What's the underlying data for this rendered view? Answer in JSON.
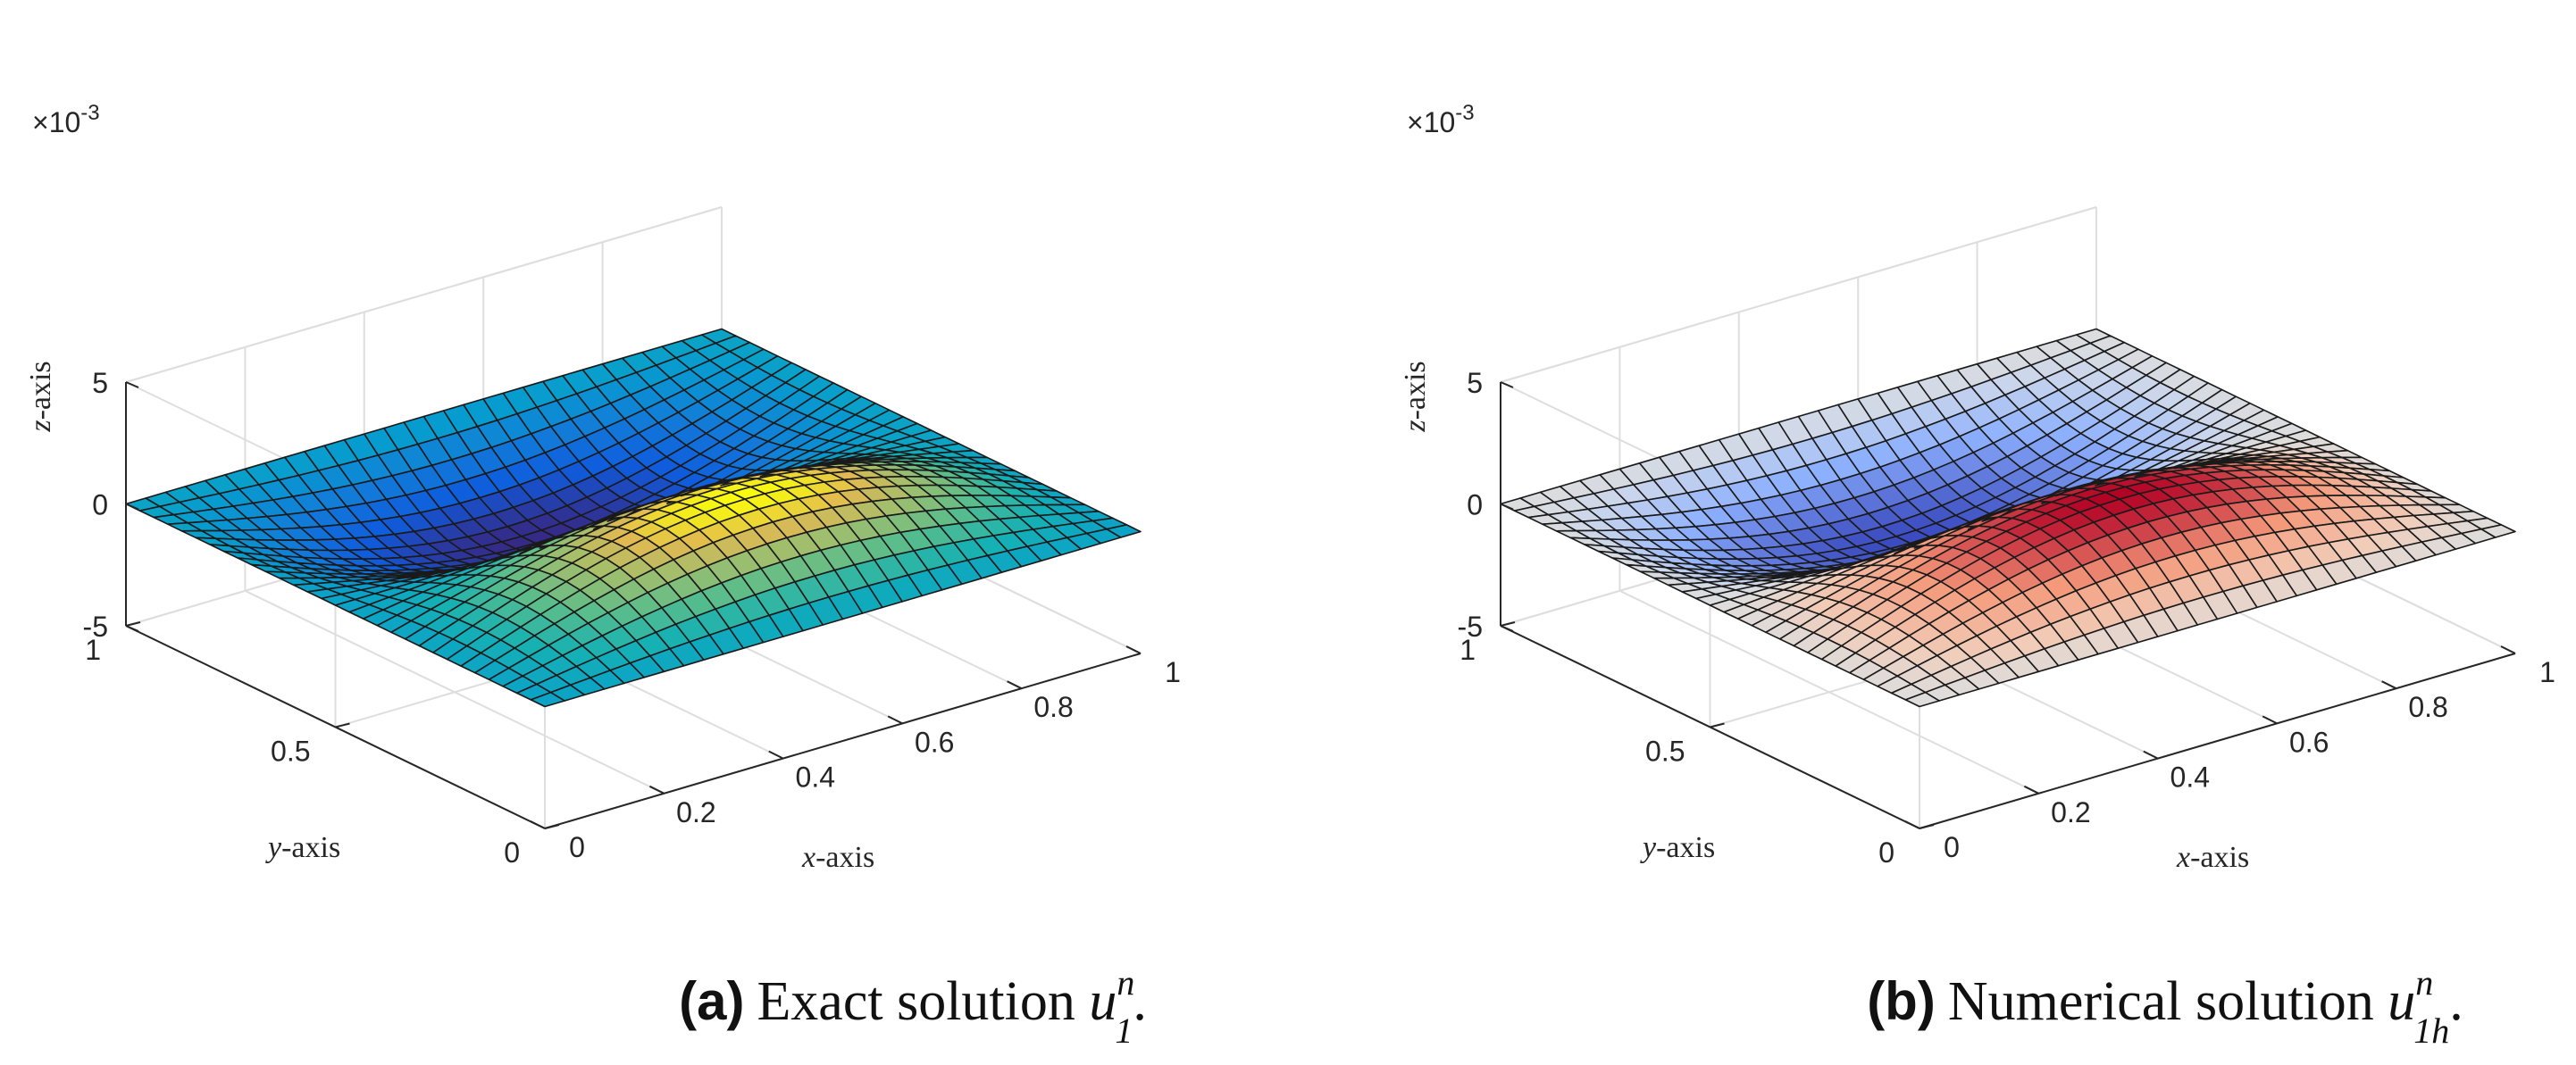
{
  "chart_data": [
    {
      "type": "surface",
      "panel_label": "(a)",
      "caption_text": "Exact solution ",
      "caption_symbol": "u",
      "caption_superscript": "n",
      "caption_subscript": "1",
      "caption_end": ".",
      "colormap": "parula",
      "function": "z = 0.003 * sin(pi*x) * sin(2*pi*y)",
      "amplitude": 0.003,
      "grid_n": 30,
      "xlabel_var": "x",
      "xlabel_suffix": "-axis",
      "ylabel_var": "y",
      "ylabel_suffix": "-axis",
      "zlabel_var": "z",
      "zlabel_suffix": "-axis",
      "xlim": [
        0,
        1
      ],
      "ylim": [
        0,
        1
      ],
      "zlim": [
        -0.005,
        0.005
      ],
      "xticks": [
        "0",
        "0.2",
        "0.4",
        "0.6",
        "0.8",
        "1"
      ],
      "yticks": [
        "0",
        "0.5",
        "1"
      ],
      "zticks": [
        "-5",
        "0",
        "5"
      ],
      "exponent_base": "×10",
      "exponent_power": "-3",
      "grid": true
    },
    {
      "type": "surface",
      "panel_label": "(b)",
      "caption_text": "Numerical solution ",
      "caption_symbol": "u",
      "caption_superscript": "n",
      "caption_subscript": "1h",
      "caption_end": ".",
      "colormap": "cool-warm",
      "function": "z = 0.003 * sin(pi*x) * sin(2*pi*y)",
      "amplitude": 0.003,
      "grid_n": 30,
      "xlabel_var": "x",
      "xlabel_suffix": "-axis",
      "ylabel_var": "y",
      "ylabel_suffix": "-axis",
      "zlabel_var": "z",
      "zlabel_suffix": "-axis",
      "xlim": [
        0,
        1
      ],
      "ylim": [
        0,
        1
      ],
      "zlim": [
        -0.005,
        0.005
      ],
      "xticks": [
        "0",
        "0.2",
        "0.4",
        "0.6",
        "0.8",
        "1"
      ],
      "yticks": [
        "0",
        "0.5",
        "1"
      ],
      "zticks": [
        "-5",
        "0",
        "5"
      ],
      "exponent_base": "×10",
      "exponent_power": "-3",
      "grid": true
    }
  ]
}
